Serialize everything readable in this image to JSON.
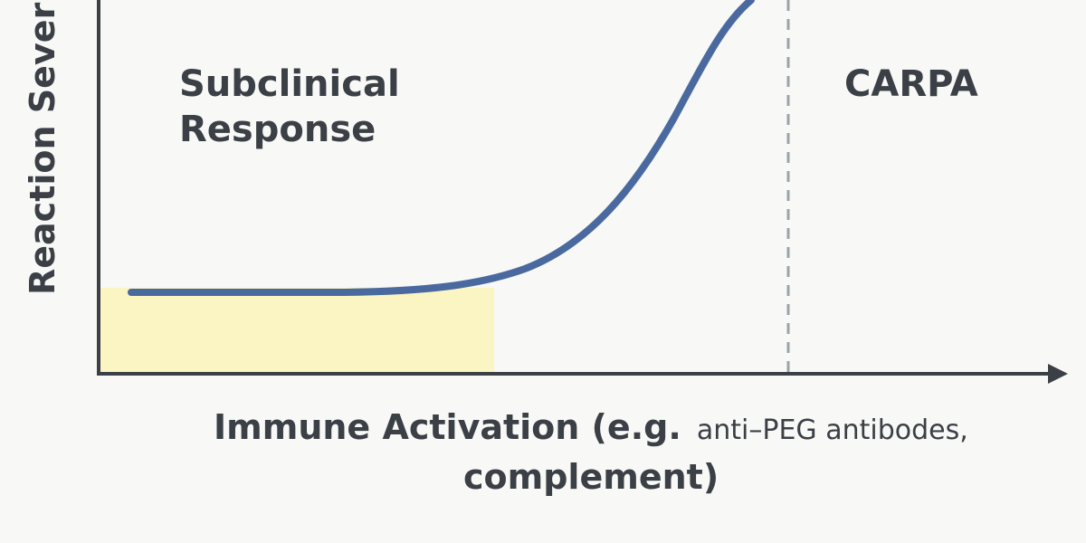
{
  "diagram": {
    "y_axis_label": "Reaction Severit",
    "x_axis_label_bold": "Immune Activation (e.g.",
    "x_axis_label_regular": "anti–PEG antibodes,",
    "x_axis_label_line2": "complement)",
    "region_left_line1": "Subclinical",
    "region_left_line2": "Response",
    "region_right": "CARPA"
  },
  "colors": {
    "curve": "#4a6a9f",
    "subclinical_fill": "#fbf4c3",
    "axis": "#3b3f46",
    "threshold_line": "#9aa3aa",
    "text": "#3b3f46"
  }
}
